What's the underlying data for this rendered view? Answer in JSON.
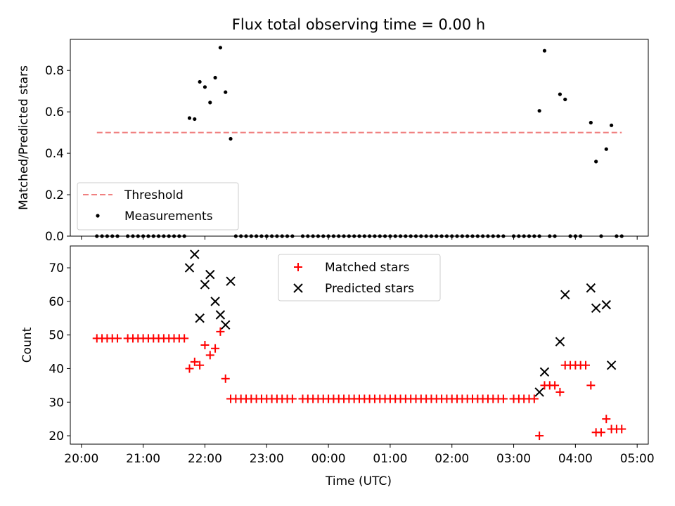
{
  "figure": {
    "title": "Flux total observing time = 0.00 h",
    "xlabel": "Time (UTC)"
  },
  "chart_data": [
    {
      "type": "scatter",
      "ylabel": "Matched/Predicted stars",
      "xlim": [
        "20:00",
        "05:00"
      ],
      "ylim": [
        0,
        0.95
      ],
      "x_ticks": [
        "20:00",
        "21:00",
        "22:00",
        "23:00",
        "00:00",
        "01:00",
        "02:00",
        "03:00",
        "04:00",
        "05:00"
      ],
      "y_ticks": [
        0.0,
        0.2,
        0.4,
        0.6,
        0.8
      ],
      "y_tick_labels": [
        "0.0",
        "0.2",
        "0.4",
        "0.6",
        "0.8"
      ],
      "legend_position": "lower-left",
      "threshold": {
        "name": "Threshold",
        "value": 0.5,
        "x_start": "20:15",
        "x_end": "04:45",
        "color": "#f08080",
        "style": "dashed"
      },
      "series": [
        {
          "name": "Measurements",
          "color": "#000000",
          "marker": "dot",
          "points": [
            [
              "20:15",
              0
            ],
            [
              "20:20",
              0
            ],
            [
              "20:25",
              0
            ],
            [
              "20:30",
              0
            ],
            [
              "20:35",
              0
            ],
            [
              "20:45",
              0
            ],
            [
              "20:50",
              0
            ],
            [
              "20:55",
              0
            ],
            [
              "21:00",
              0
            ],
            [
              "21:05",
              0
            ],
            [
              "21:10",
              0
            ],
            [
              "21:15",
              0
            ],
            [
              "21:20",
              0
            ],
            [
              "21:25",
              0
            ],
            [
              "21:30",
              0
            ],
            [
              "21:35",
              0
            ],
            [
              "21:40",
              0
            ],
            [
              "21:45",
              0.57
            ],
            [
              "21:50",
              0.565
            ],
            [
              "21:55",
              0.745
            ],
            [
              "22:00",
              0.72
            ],
            [
              "22:05",
              0.645
            ],
            [
              "22:10",
              0.765
            ],
            [
              "22:15",
              0.91
            ],
            [
              "22:20",
              0.695
            ],
            [
              "22:25",
              0.47
            ],
            [
              "22:30",
              0
            ],
            [
              "22:35",
              0
            ],
            [
              "22:40",
              0
            ],
            [
              "22:45",
              0
            ],
            [
              "22:50",
              0
            ],
            [
              "22:55",
              0
            ],
            [
              "23:00",
              0
            ],
            [
              "23:05",
              0
            ],
            [
              "23:10",
              0
            ],
            [
              "23:15",
              0
            ],
            [
              "23:20",
              0
            ],
            [
              "23:25",
              0
            ],
            [
              "23:35",
              0
            ],
            [
              "23:40",
              0
            ],
            [
              "23:45",
              0
            ],
            [
              "23:50",
              0
            ],
            [
              "23:55",
              0
            ],
            [
              "00:00",
              0
            ],
            [
              "00:05",
              0
            ],
            [
              "00:10",
              0
            ],
            [
              "00:15",
              0
            ],
            [
              "00:20",
              0
            ],
            [
              "00:25",
              0
            ],
            [
              "00:30",
              0
            ],
            [
              "00:35",
              0
            ],
            [
              "00:40",
              0
            ],
            [
              "00:45",
              0
            ],
            [
              "00:50",
              0
            ],
            [
              "00:55",
              0
            ],
            [
              "01:00",
              0
            ],
            [
              "01:05",
              0
            ],
            [
              "01:10",
              0
            ],
            [
              "01:15",
              0
            ],
            [
              "01:20",
              0
            ],
            [
              "01:25",
              0
            ],
            [
              "01:30",
              0
            ],
            [
              "01:35",
              0
            ],
            [
              "01:40",
              0
            ],
            [
              "01:45",
              0
            ],
            [
              "01:50",
              0
            ],
            [
              "01:55",
              0
            ],
            [
              "02:00",
              0
            ],
            [
              "02:05",
              0
            ],
            [
              "02:10",
              0
            ],
            [
              "02:15",
              0
            ],
            [
              "02:20",
              0
            ],
            [
              "02:25",
              0
            ],
            [
              "02:30",
              0
            ],
            [
              "02:35",
              0
            ],
            [
              "02:40",
              0
            ],
            [
              "02:45",
              0
            ],
            [
              "02:50",
              0
            ],
            [
              "03:00",
              0
            ],
            [
              "03:05",
              0
            ],
            [
              "03:10",
              0
            ],
            [
              "03:15",
              0
            ],
            [
              "03:20",
              0
            ],
            [
              "03:25",
              0
            ],
            [
              "03:25",
              0.605
            ],
            [
              "03:30",
              0.895
            ],
            [
              "03:35",
              0
            ],
            [
              "03:40",
              0
            ],
            [
              "03:45",
              0.685
            ],
            [
              "03:50",
              0.66
            ],
            [
              "03:55",
              0
            ],
            [
              "04:00",
              0
            ],
            [
              "04:05",
              0
            ],
            [
              "04:15",
              0.548
            ],
            [
              "04:20",
              0.36
            ],
            [
              "04:25",
              0
            ],
            [
              "04:30",
              0.42
            ],
            [
              "04:35",
              0.535
            ],
            [
              "04:40",
              0
            ],
            [
              "04:45",
              0
            ]
          ]
        }
      ]
    },
    {
      "type": "scatter",
      "ylabel": "Count",
      "xlim": [
        "20:00",
        "05:00"
      ],
      "ylim": [
        17.5,
        76.5
      ],
      "x_ticks": [
        "20:00",
        "21:00",
        "22:00",
        "23:00",
        "00:00",
        "01:00",
        "02:00",
        "03:00",
        "04:00",
        "05:00"
      ],
      "x_tick_labels": [
        "20:00",
        "21:00",
        "22:00",
        "23:00",
        "00:00",
        "01:00",
        "02:00",
        "03:00",
        "04:00",
        "05:00"
      ],
      "y_ticks": [
        20,
        30,
        40,
        50,
        60,
        70
      ],
      "y_tick_labels": [
        "20",
        "30",
        "40",
        "50",
        "60",
        "70"
      ],
      "legend_position": "upper-center",
      "series": [
        {
          "name": "Matched stars",
          "color": "#ff0000",
          "marker": "plus",
          "points": [
            [
              "20:15",
              49
            ],
            [
              "20:20",
              49
            ],
            [
              "20:25",
              49
            ],
            [
              "20:30",
              49
            ],
            [
              "20:35",
              49
            ],
            [
              "20:45",
              49
            ],
            [
              "20:50",
              49
            ],
            [
              "20:55",
              49
            ],
            [
              "21:00",
              49
            ],
            [
              "21:05",
              49
            ],
            [
              "21:10",
              49
            ],
            [
              "21:15",
              49
            ],
            [
              "21:20",
              49
            ],
            [
              "21:25",
              49
            ],
            [
              "21:30",
              49
            ],
            [
              "21:35",
              49
            ],
            [
              "21:40",
              49
            ],
            [
              "21:45",
              40
            ],
            [
              "21:50",
              42
            ],
            [
              "21:55",
              41
            ],
            [
              "22:00",
              47
            ],
            [
              "22:05",
              44
            ],
            [
              "22:10",
              46
            ],
            [
              "22:15",
              51
            ],
            [
              "22:20",
              37
            ],
            [
              "22:25",
              31
            ],
            [
              "22:30",
              31
            ],
            [
              "22:35",
              31
            ],
            [
              "22:40",
              31
            ],
            [
              "22:45",
              31
            ],
            [
              "22:50",
              31
            ],
            [
              "22:55",
              31
            ],
            [
              "23:00",
              31
            ],
            [
              "23:05",
              31
            ],
            [
              "23:10",
              31
            ],
            [
              "23:15",
              31
            ],
            [
              "23:20",
              31
            ],
            [
              "23:25",
              31
            ],
            [
              "23:35",
              31
            ],
            [
              "23:40",
              31
            ],
            [
              "23:45",
              31
            ],
            [
              "23:50",
              31
            ],
            [
              "23:55",
              31
            ],
            [
              "00:00",
              31
            ],
            [
              "00:05",
              31
            ],
            [
              "00:10",
              31
            ],
            [
              "00:15",
              31
            ],
            [
              "00:20",
              31
            ],
            [
              "00:25",
              31
            ],
            [
              "00:30",
              31
            ],
            [
              "00:35",
              31
            ],
            [
              "00:40",
              31
            ],
            [
              "00:45",
              31
            ],
            [
              "00:50",
              31
            ],
            [
              "00:55",
              31
            ],
            [
              "01:00",
              31
            ],
            [
              "01:05",
              31
            ],
            [
              "01:10",
              31
            ],
            [
              "01:15",
              31
            ],
            [
              "01:20",
              31
            ],
            [
              "01:25",
              31
            ],
            [
              "01:30",
              31
            ],
            [
              "01:35",
              31
            ],
            [
              "01:40",
              31
            ],
            [
              "01:45",
              31
            ],
            [
              "01:50",
              31
            ],
            [
              "01:55",
              31
            ],
            [
              "02:00",
              31
            ],
            [
              "02:05",
              31
            ],
            [
              "02:10",
              31
            ],
            [
              "02:15",
              31
            ],
            [
              "02:20",
              31
            ],
            [
              "02:25",
              31
            ],
            [
              "02:30",
              31
            ],
            [
              "02:35",
              31
            ],
            [
              "02:40",
              31
            ],
            [
              "02:45",
              31
            ],
            [
              "02:50",
              31
            ],
            [
              "03:00",
              31
            ],
            [
              "03:05",
              31
            ],
            [
              "03:10",
              31
            ],
            [
              "03:15",
              31
            ],
            [
              "03:20",
              31
            ],
            [
              "03:25",
              20
            ],
            [
              "03:30",
              35
            ],
            [
              "03:35",
              35
            ],
            [
              "03:40",
              35
            ],
            [
              "03:45",
              33
            ],
            [
              "03:50",
              41
            ],
            [
              "03:55",
              41
            ],
            [
              "04:00",
              41
            ],
            [
              "04:05",
              41
            ],
            [
              "04:10",
              41
            ],
            [
              "04:15",
              35
            ],
            [
              "04:20",
              21
            ],
            [
              "04:25",
              21
            ],
            [
              "04:30",
              25
            ],
            [
              "04:35",
              22
            ],
            [
              "04:40",
              22
            ],
            [
              "04:45",
              22
            ]
          ]
        },
        {
          "name": "Predicted stars",
          "color": "#000000",
          "marker": "x",
          "points": [
            [
              "21:45",
              70
            ],
            [
              "21:50",
              74
            ],
            [
              "21:55",
              55
            ],
            [
              "22:00",
              65
            ],
            [
              "22:05",
              68
            ],
            [
              "22:10",
              60
            ],
            [
              "22:15",
              56
            ],
            [
              "22:20",
              53
            ],
            [
              "22:25",
              66
            ],
            [
              "03:25",
              33
            ],
            [
              "03:30",
              39
            ],
            [
              "03:45",
              48
            ],
            [
              "03:50",
              62
            ],
            [
              "04:15",
              64
            ],
            [
              "04:20",
              58
            ],
            [
              "04:30",
              59
            ],
            [
              "04:35",
              41
            ]
          ]
        }
      ]
    }
  ]
}
